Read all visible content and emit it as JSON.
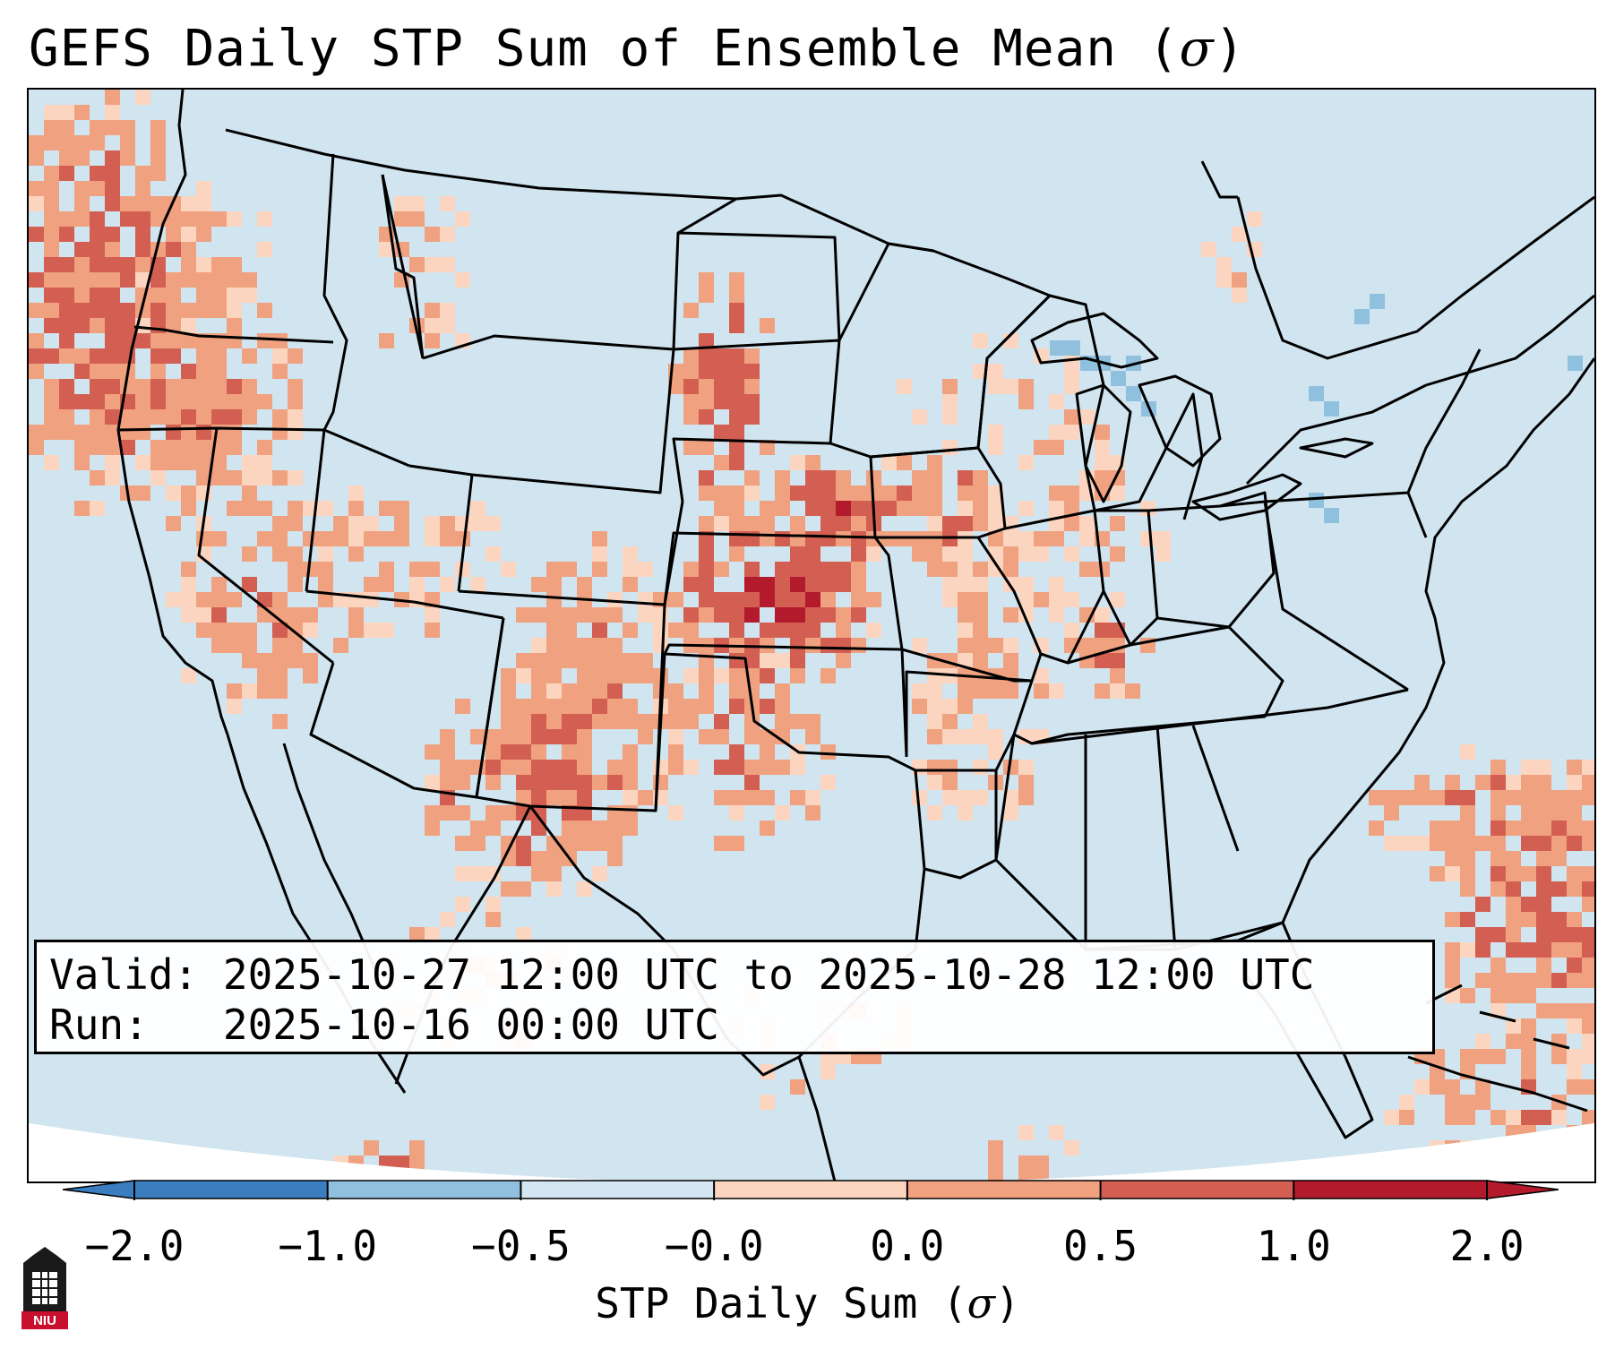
{
  "title": "GEFS Daily STP Sum of Ensemble Mean (",
  "title_symbol": "σ",
  "title_close": ")",
  "info": {
    "valid_label": "Valid:",
    "valid_value": "2025-10-27 12:00 UTC to 2025-10-28 12:00 UTC",
    "run_label": "Run:",
    "run_value": "2025-10-16 00:00 UTC"
  },
  "colorbar": {
    "label_text": "STP Daily Sum (",
    "label_symbol": "σ",
    "label_close": ")",
    "ticks": [
      "−2.0",
      "−1.0",
      "−0.5",
      "−0.0",
      "0.0",
      "0.5",
      "1.0",
      "2.0"
    ],
    "colors": [
      "#3a7ec0",
      "#8fc0de",
      "#d3e6f2",
      "#f7f7f7",
      "#fbd5bf",
      "#f0a17f",
      "#d25f51",
      "#b31b2c"
    ]
  },
  "colors": {
    "background_fill": "#d1e5f0",
    "border_line": "#000000"
  },
  "logo": {
    "text": "NIU",
    "color": "#c8102e"
  }
}
